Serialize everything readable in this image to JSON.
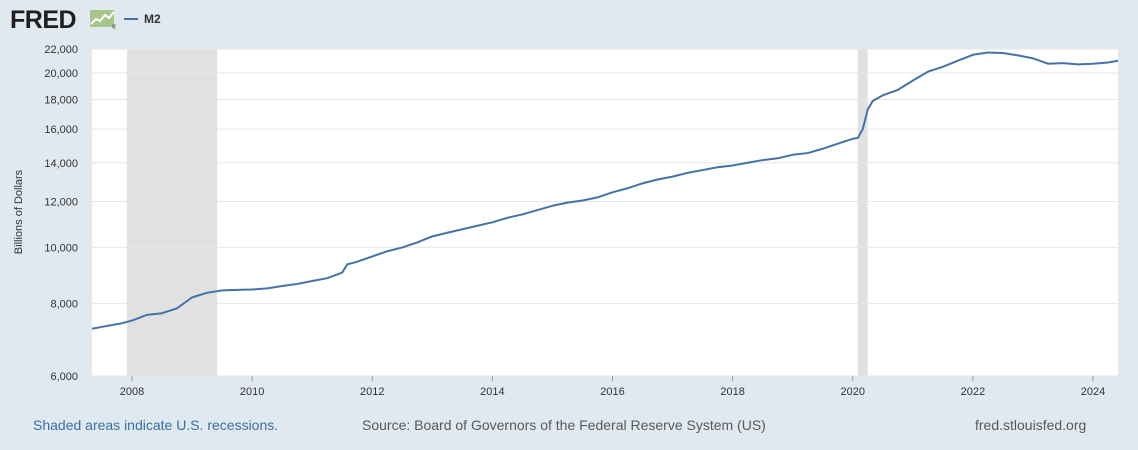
{
  "logo": {
    "text": "FRED",
    "mark": "®"
  },
  "legend": {
    "series_name": "M2",
    "color": "#4572a7"
  },
  "footer": {
    "recession_note": "Shaded areas indicate U.S. recessions.",
    "source": "Source: Board of Governors of the Federal Reserve System (US)",
    "site": "fred.stlouisfed.org"
  },
  "colors": {
    "page_background": "#e1e9f0",
    "plot_background": "#ffffff",
    "recession_shade": "#e1e1e1",
    "gridline": "#e6e6e6",
    "series_line": "#4572a7"
  },
  "chart_data": {
    "type": "line",
    "title": "",
    "xlabel": "",
    "ylabel": "Billions of Dollars",
    "y_scale": "log",
    "ylim": [
      6000,
      22000
    ],
    "xlim": [
      "2007-05",
      "2024-06"
    ],
    "y_ticks": [
      6000,
      8000,
      10000,
      12000,
      14000,
      16000,
      18000,
      20000,
      22000
    ],
    "y_tick_labels": [
      "6,000",
      "8,000",
      "10,000",
      "12,000",
      "14,000",
      "16,000",
      "18,000",
      "20,000",
      "22,000"
    ],
    "x_ticks": [
      "2008-01",
      "2010-01",
      "2012-01",
      "2014-01",
      "2016-01",
      "2018-01",
      "2020-01",
      "2022-01",
      "2024-01"
    ],
    "x_tick_labels": [
      "2008",
      "2010",
      "2012",
      "2014",
      "2016",
      "2018",
      "2020",
      "2022",
      "2024"
    ],
    "grid": "horizontal",
    "legend_position": "top-left",
    "recessions": [
      {
        "start": "2007-12",
        "end": "2009-06"
      },
      {
        "start": "2020-02",
        "end": "2020-04"
      }
    ],
    "series": [
      {
        "name": "M2",
        "color": "#4572a7",
        "points": [
          [
            "2007-05",
            7240
          ],
          [
            "2007-08",
            7320
          ],
          [
            "2007-11",
            7400
          ],
          [
            "2008-01",
            7480
          ],
          [
            "2008-04",
            7650
          ],
          [
            "2008-07",
            7700
          ],
          [
            "2008-10",
            7850
          ],
          [
            "2009-01",
            8200
          ],
          [
            "2009-04",
            8350
          ],
          [
            "2009-07",
            8430
          ],
          [
            "2009-10",
            8450
          ],
          [
            "2010-01",
            8460
          ],
          [
            "2010-04",
            8500
          ],
          [
            "2010-07",
            8580
          ],
          [
            "2010-10",
            8650
          ],
          [
            "2011-01",
            8750
          ],
          [
            "2011-04",
            8850
          ],
          [
            "2011-07",
            9050
          ],
          [
            "2011-08",
            9350
          ],
          [
            "2011-10",
            9450
          ],
          [
            "2012-01",
            9650
          ],
          [
            "2012-04",
            9850
          ],
          [
            "2012-07",
            10000
          ],
          [
            "2012-10",
            10200
          ],
          [
            "2013-01",
            10450
          ],
          [
            "2013-04",
            10600
          ],
          [
            "2013-07",
            10750
          ],
          [
            "2013-10",
            10900
          ],
          [
            "2014-01",
            11050
          ],
          [
            "2014-04",
            11250
          ],
          [
            "2014-07",
            11400
          ],
          [
            "2014-10",
            11600
          ],
          [
            "2015-01",
            11800
          ],
          [
            "2015-04",
            11950
          ],
          [
            "2015-07",
            12050
          ],
          [
            "2015-10",
            12200
          ],
          [
            "2016-01",
            12450
          ],
          [
            "2016-04",
            12650
          ],
          [
            "2016-07",
            12900
          ],
          [
            "2016-10",
            13100
          ],
          [
            "2017-01",
            13250
          ],
          [
            "2017-04",
            13450
          ],
          [
            "2017-07",
            13600
          ],
          [
            "2017-10",
            13750
          ],
          [
            "2018-01",
            13850
          ],
          [
            "2018-04",
            14000
          ],
          [
            "2018-07",
            14150
          ],
          [
            "2018-10",
            14250
          ],
          [
            "2019-01",
            14450
          ],
          [
            "2019-04",
            14550
          ],
          [
            "2019-07",
            14800
          ],
          [
            "2019-10",
            15100
          ],
          [
            "2020-01",
            15400
          ],
          [
            "2020-02",
            15450
          ],
          [
            "2020-03",
            16000
          ],
          [
            "2020-04",
            17300
          ],
          [
            "2020-05",
            17900
          ],
          [
            "2020-07",
            18300
          ],
          [
            "2020-10",
            18700
          ],
          [
            "2021-01",
            19400
          ],
          [
            "2021-04",
            20100
          ],
          [
            "2021-07",
            20500
          ],
          [
            "2021-10",
            21000
          ],
          [
            "2022-01",
            21500
          ],
          [
            "2022-04",
            21700
          ],
          [
            "2022-07",
            21650
          ],
          [
            "2022-10",
            21450
          ],
          [
            "2023-01",
            21200
          ],
          [
            "2023-04",
            20750
          ],
          [
            "2023-07",
            20800
          ],
          [
            "2023-10",
            20700
          ],
          [
            "2024-01",
            20750
          ],
          [
            "2024-04",
            20850
          ],
          [
            "2024-06",
            21000
          ]
        ]
      }
    ]
  }
}
